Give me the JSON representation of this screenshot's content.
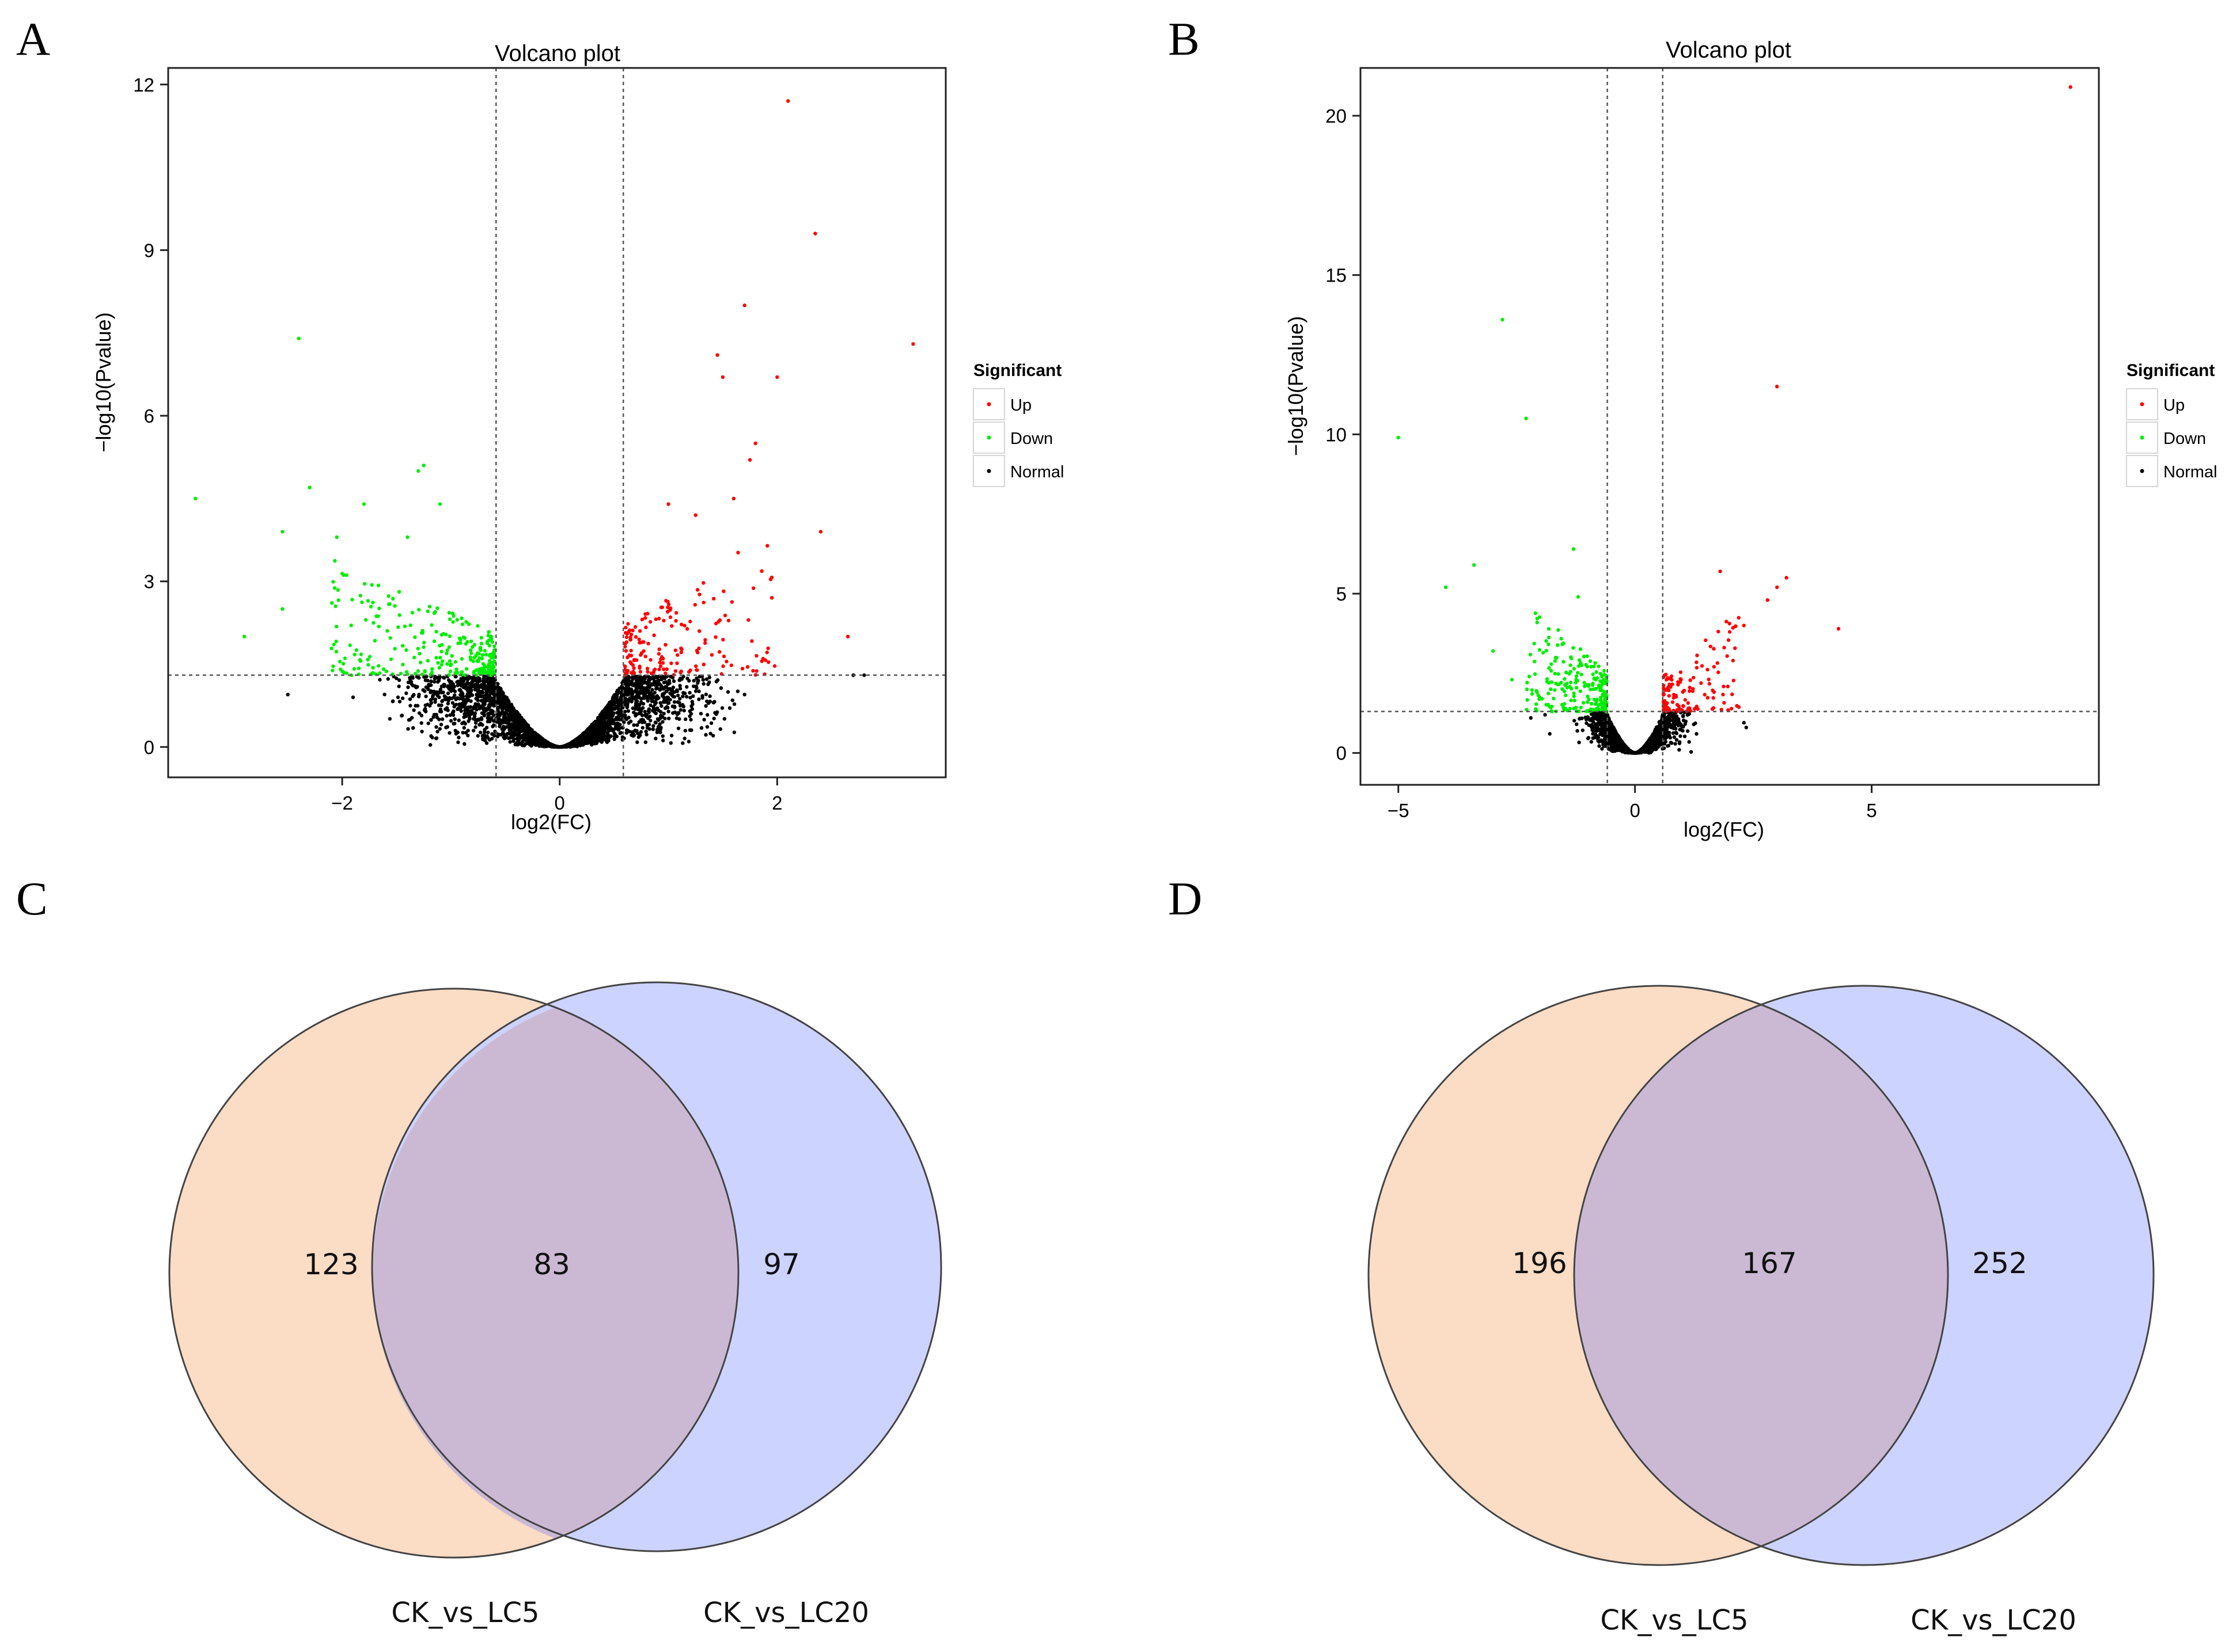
{
  "panels": {
    "a": "A",
    "b": "B",
    "c": "C",
    "d": "D"
  },
  "colors": {
    "up": "#ff0000",
    "down": "#00ee00",
    "normal": "#000000",
    "set_left": "#fbdcc5",
    "set_right": "#cdd3ff",
    "overlap": "#cbb9d4"
  },
  "chart_data": [
    {
      "id": "A",
      "type": "scatter",
      "title": "Volcano plot",
      "xlabel": "log2(FC)",
      "ylabel": "−log10(Pvalue)",
      "xlim": [
        -3.6,
        3.55
      ],
      "ylim": [
        -0.55,
        12.3
      ],
      "xticks": [
        -2,
        0,
        2
      ],
      "xtick_labels": [
        "−2",
        "0",
        "2"
      ],
      "yticks": [
        0,
        3,
        6,
        9,
        12
      ],
      "ytick_labels": [
        "0",
        "3",
        "6",
        "9",
        "12"
      ],
      "fc_cutoff": 0.585,
      "p_cutoff": 1.301,
      "grid": false,
      "legend": {
        "title": "Significant",
        "placement": "right",
        "entries": [
          "Up",
          "Down",
          "Normal"
        ]
      },
      "highlight_points": {
        "up": [
          [
            2.1,
            11.7
          ],
          [
            2.35,
            9.3
          ],
          [
            1.7,
            8.0
          ],
          [
            3.25,
            7.3
          ],
          [
            1.45,
            7.1
          ],
          [
            1.5,
            6.7
          ],
          [
            2.0,
            6.7
          ],
          [
            1.8,
            5.5
          ],
          [
            1.75,
            5.2
          ],
          [
            1.6,
            4.5
          ],
          [
            2.4,
            3.9
          ],
          [
            2.65,
            2.0
          ],
          [
            1.0,
            4.4
          ],
          [
            1.25,
            4.2
          ]
        ],
        "down": [
          [
            -2.4,
            7.4
          ],
          [
            -3.35,
            4.5
          ],
          [
            -1.25,
            5.1
          ],
          [
            -1.3,
            5.0
          ],
          [
            -2.3,
            4.7
          ],
          [
            -1.8,
            4.4
          ],
          [
            -1.1,
            4.4
          ],
          [
            -2.55,
            3.9
          ],
          [
            -2.05,
            3.8
          ],
          [
            -1.4,
            3.8
          ],
          [
            -2.9,
            2.0
          ],
          [
            -2.55,
            2.5
          ]
        ],
        "normal": [
          [
            -2.5,
            0.95
          ],
          [
            -1.9,
            0.9
          ],
          [
            2.7,
            1.3
          ],
          [
            2.8,
            1.3
          ],
          [
            1.7,
            0.95
          ],
          [
            -1.35,
            1.25
          ]
        ]
      },
      "bulk": {
        "up": {
          "count": 170,
          "x_range": [
            0.6,
            2.0
          ],
          "y_range": [
            1.3,
            4.0
          ]
        },
        "down": {
          "count": 260,
          "x_range": [
            -2.1,
            -0.6
          ],
          "y_range": [
            1.3,
            3.5
          ]
        },
        "normal": {
          "count": 3000,
          "x_range": [
            -1.9,
            2.4
          ],
          "y_range": [
            0,
            1.3
          ]
        }
      }
    },
    {
      "id": "B",
      "type": "scatter",
      "title": "Volcano plot",
      "xlabel": "log2(FC)",
      "ylabel": "−log10(Pvalue)",
      "xlim": [
        -5.8,
        9.8
      ],
      "ylim": [
        -1.0,
        21.5
      ],
      "xticks": [
        -5,
        0,
        5
      ],
      "xtick_labels": [
        "−5",
        "0",
        "5"
      ],
      "yticks": [
        0,
        5,
        10,
        15,
        20
      ],
      "ytick_labels": [
        "0",
        "5",
        "10",
        "15",
        "20"
      ],
      "fc_cutoff": 0.585,
      "p_cutoff": 1.301,
      "grid": false,
      "legend": {
        "title": "Significant",
        "placement": "right",
        "entries": [
          "Up",
          "Down",
          "Normal"
        ]
      },
      "highlight_points": {
        "up": [
          [
            9.2,
            20.9
          ],
          [
            3.0,
            11.5
          ],
          [
            3.2,
            5.5
          ],
          [
            3.0,
            5.2
          ],
          [
            2.8,
            4.8
          ],
          [
            4.3,
            3.9
          ],
          [
            1.8,
            5.7
          ],
          [
            2.3,
            4.0
          ],
          [
            2.0,
            3.8
          ]
        ],
        "down": [
          [
            -2.8,
            13.6
          ],
          [
            -2.3,
            10.5
          ],
          [
            -5.0,
            9.9
          ],
          [
            -1.3,
            6.4
          ],
          [
            -3.4,
            5.9
          ],
          [
            -4.0,
            5.2
          ],
          [
            -1.2,
            4.9
          ],
          [
            -3.0,
            3.2
          ],
          [
            -2.6,
            2.3
          ]
        ],
        "normal": [
          [
            -2.2,
            1.1
          ],
          [
            2.3,
            0.95
          ],
          [
            2.35,
            0.8
          ],
          [
            -1.8,
            0.6
          ],
          [
            -1.9,
            1.2
          ],
          [
            1.3,
            0.6
          ]
        ]
      },
      "bulk": {
        "up": {
          "count": 130,
          "x_range": [
            0.6,
            2.2
          ],
          "y_range": [
            1.3,
            4.5
          ]
        },
        "down": {
          "count": 220,
          "x_range": [
            -2.3,
            -0.6
          ],
          "y_range": [
            1.3,
            4.8
          ]
        },
        "normal": {
          "count": 1800,
          "x_range": [
            -1.8,
            1.8
          ],
          "y_range": [
            0,
            1.3
          ]
        }
      }
    }
  ],
  "venn": [
    {
      "id": "C",
      "sets": [
        "CK_vs_LC5",
        "CK_vs_LC20"
      ],
      "counts": {
        "left_only": "123",
        "both": "83",
        "right_only": "97"
      }
    },
    {
      "id": "D",
      "sets": [
        "CK_vs_LC5",
        "CK_vs_LC20"
      ],
      "counts": {
        "left_only": "196",
        "both": "167",
        "right_only": "252"
      }
    }
  ]
}
